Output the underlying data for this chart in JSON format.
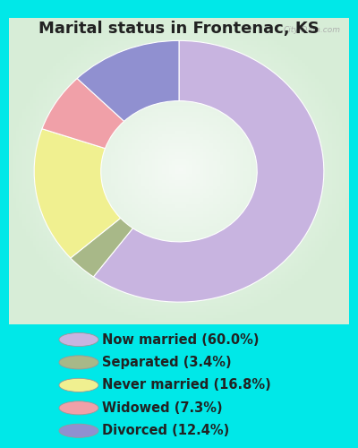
{
  "title": "Marital status in Frontenac, KS",
  "slices": [
    {
      "label": "Now married (60.0%)",
      "value": 60.0,
      "color": "#c8b4e0"
    },
    {
      "label": "Separated (3.4%)",
      "value": 3.4,
      "color": "#a8b888"
    },
    {
      "label": "Never married (16.8%)",
      "value": 16.8,
      "color": "#f0f090"
    },
    {
      "label": "Widowed (7.3%)",
      "value": 7.3,
      "color": "#f0a0a8"
    },
    {
      "label": "Divorced (12.4%)",
      "value": 12.4,
      "color": "#9090d0"
    }
  ],
  "bg_outer": "#00e8e8",
  "watermark": "City-Data.com",
  "title_fontsize": 13,
  "legend_fontsize": 10.5,
  "title_color": "#222222"
}
